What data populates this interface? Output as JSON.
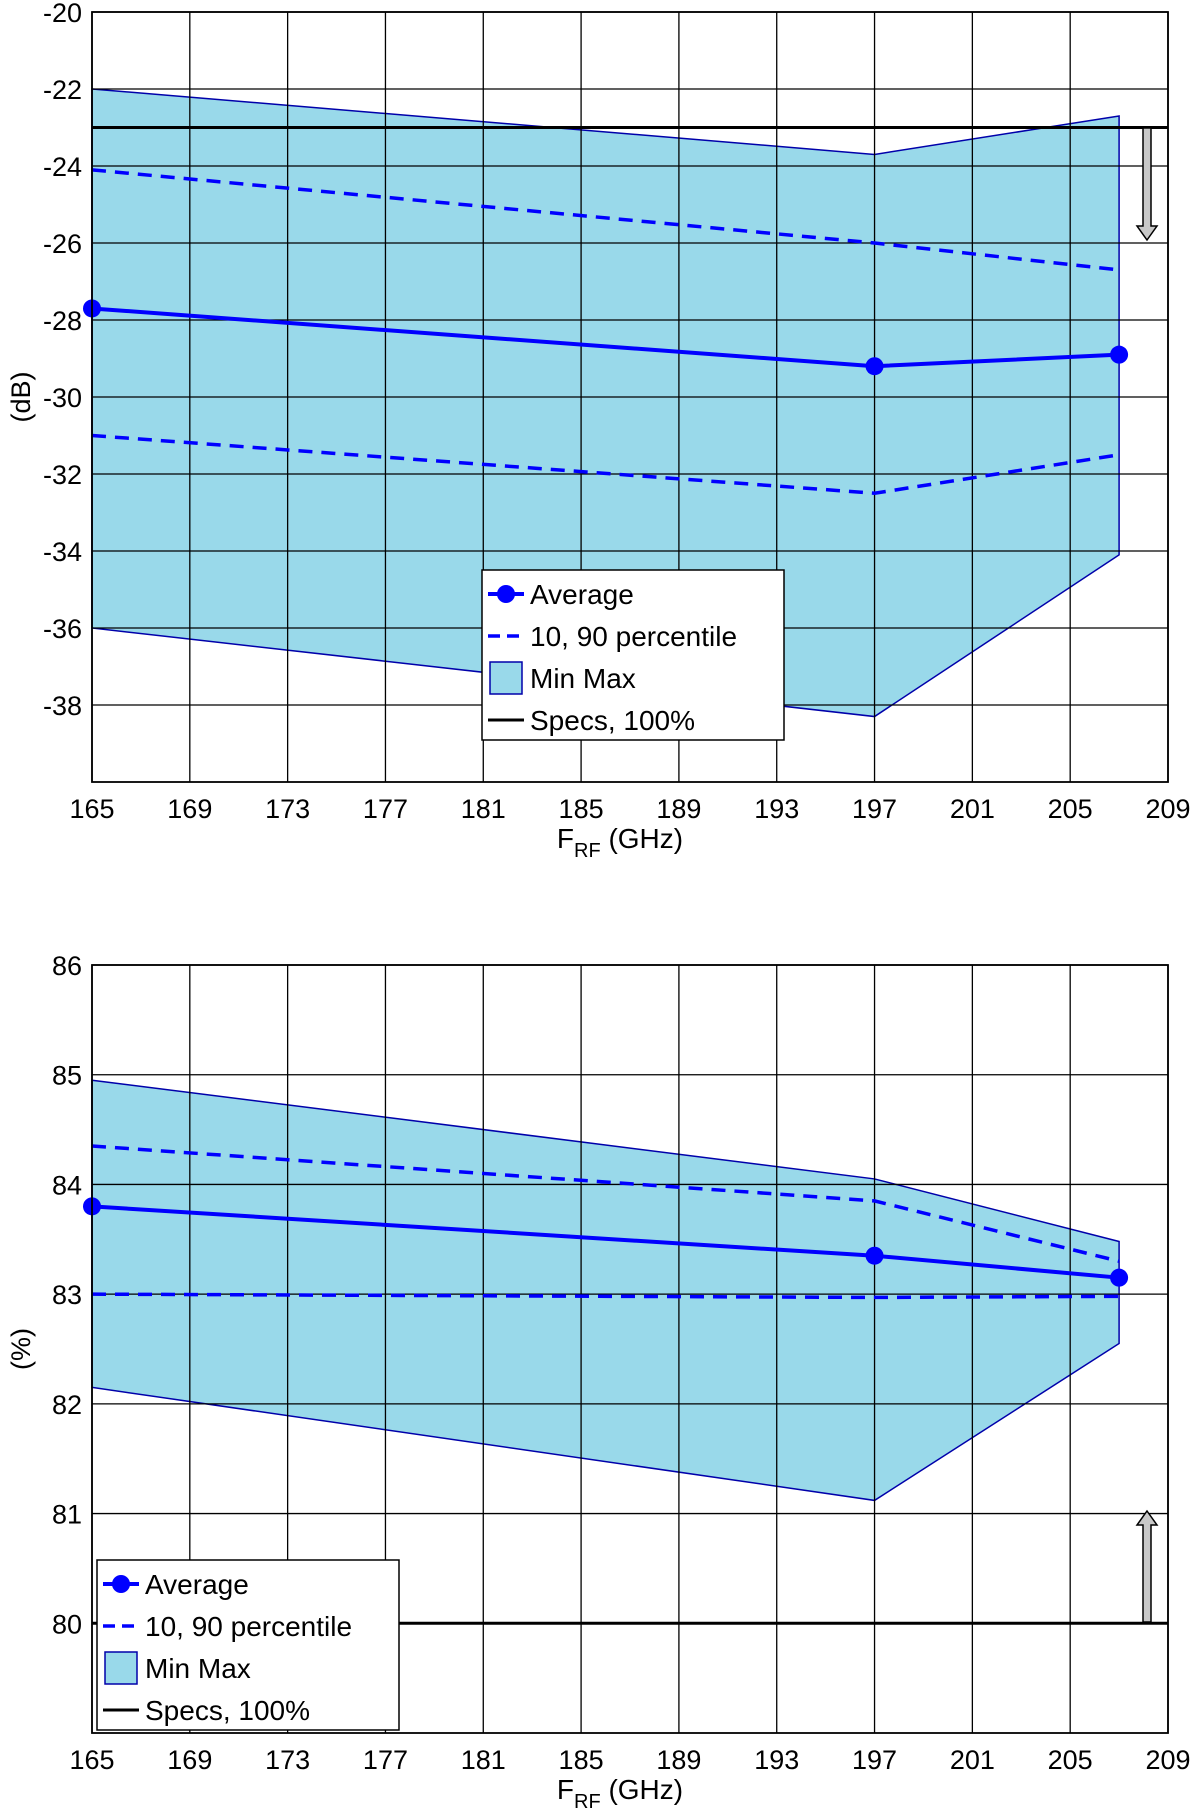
{
  "chart_data": [
    {
      "type": "line",
      "title": "",
      "xlabel_main": "F",
      "xlabel_sub": "RF",
      "xlabel_unit": " (GHz)",
      "ylabel": "(dB)",
      "xlim": [
        165,
        209
      ],
      "ylim": [
        -40,
        -20
      ],
      "xticks": [
        165,
        169,
        173,
        177,
        181,
        185,
        189,
        193,
        197,
        201,
        205,
        209
      ],
      "yticks": [
        -38,
        -36,
        -34,
        -32,
        -30,
        -28,
        -26,
        -24,
        -22,
        -20
      ],
      "grid": true,
      "legend_position": "bottom-center",
      "spec_arrow": "down",
      "x": [
        165,
        197,
        207
      ],
      "series": [
        {
          "name": "Average",
          "kind": "line-marker",
          "color": "#0000ff",
          "values": [
            -27.7,
            -29.2,
            -28.9
          ]
        },
        {
          "name": "10, 90 percentile",
          "kind": "dashed",
          "color": "#0000ff",
          "values": [
            -24.1,
            -26.0,
            -26.7
          ],
          "lower": [
            -31.0,
            -32.5,
            -31.5
          ]
        },
        {
          "name": "Min Max",
          "kind": "band",
          "color": "#99d9ea",
          "values": [
            -22.0,
            -23.7,
            -22.7
          ],
          "lower": [
            -36.0,
            -38.3,
            -34.1
          ]
        },
        {
          "name": "Specs, 100%",
          "kind": "hline",
          "color": "#000000",
          "value": -23.0
        }
      ]
    },
    {
      "type": "line",
      "title": "",
      "xlabel_main": "F",
      "xlabel_sub": "RF",
      "xlabel_unit": " (GHz)",
      "ylabel": "(%)",
      "xlim": [
        165,
        209
      ],
      "ylim": [
        79,
        86
      ],
      "xticks": [
        165,
        169,
        173,
        177,
        181,
        185,
        189,
        193,
        197,
        201,
        205,
        209
      ],
      "yticks": [
        80,
        81,
        82,
        83,
        84,
        85,
        86
      ],
      "grid": true,
      "legend_position": "bottom-left",
      "spec_arrow": "up",
      "x": [
        165,
        197,
        207
      ],
      "series": [
        {
          "name": "Average",
          "kind": "line-marker",
          "color": "#0000ff",
          "values": [
            83.8,
            83.35,
            83.15
          ]
        },
        {
          "name": "10, 90 percentile",
          "kind": "dashed",
          "color": "#0000ff",
          "values": [
            84.35,
            83.85,
            83.3
          ],
          "lower": [
            83.0,
            82.97,
            82.98
          ]
        },
        {
          "name": "Min Max",
          "kind": "band",
          "color": "#99d9ea",
          "values": [
            84.95,
            84.05,
            83.48
          ],
          "lower": [
            82.15,
            81.12,
            82.55
          ]
        },
        {
          "name": "Specs, 100%",
          "kind": "hline",
          "color": "#000000",
          "value": 80.0
        }
      ]
    }
  ]
}
